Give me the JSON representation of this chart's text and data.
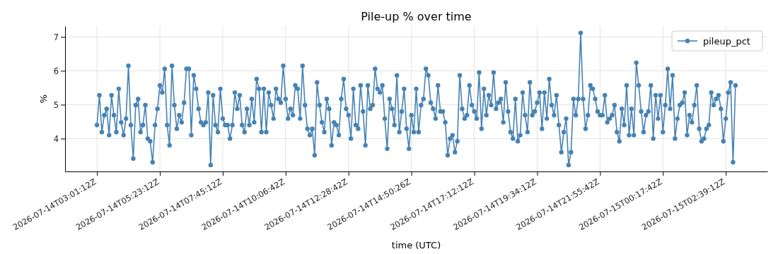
{
  "chart_data": {
    "type": "line",
    "title": "Pile-up % over time",
    "xlabel": "time (UTC)",
    "ylabel": "%",
    "categories": [
      "2026-07-14T03:01:12Z",
      null,
      null,
      null,
      null,
      null,
      null,
      null,
      null,
      null,
      null,
      null,
      null,
      null,
      null,
      null,
      null,
      null,
      null,
      null,
      null,
      null,
      null,
      null,
      null,
      null,
      "2026-07-14T05:23:12Z",
      null,
      null,
      null,
      null,
      null,
      null,
      null,
      null,
      null,
      null,
      null,
      null,
      null,
      null,
      null,
      null,
      null,
      null,
      null,
      null,
      null,
      null,
      null,
      null,
      null,
      "2026-07-14T07:45:12Z",
      null,
      null,
      null,
      null,
      null,
      null,
      null,
      null,
      null,
      null,
      null,
      null,
      null,
      null,
      null,
      null,
      null,
      null,
      null,
      null,
      null,
      null,
      null,
      null,
      null,
      "2026-07-14T10:06:42Z",
      null,
      null,
      null,
      null,
      null,
      null,
      null,
      null,
      null,
      null,
      null,
      null,
      null,
      null,
      null,
      null,
      null,
      null,
      null,
      null,
      null,
      null,
      null,
      null,
      null,
      "2026-07-14T12:28:42Z",
      null,
      null,
      null,
      null,
      null,
      null,
      null,
      null,
      null,
      null,
      null,
      null,
      null,
      null,
      null,
      null,
      null,
      null,
      null,
      null,
      null,
      null,
      null,
      null,
      null,
      "2026-07-14T14:50:26Z",
      null,
      null,
      null,
      null,
      null,
      null,
      null,
      null,
      null,
      null,
      null,
      null,
      null,
      null,
      null,
      null,
      null,
      null,
      null,
      null,
      null,
      null,
      null,
      null,
      null,
      "2026-07-14T17:12:12Z",
      null,
      null,
      null,
      null,
      null,
      null,
      null,
      null,
      null,
      null,
      null,
      null,
      null,
      null,
      null,
      null,
      null,
      null,
      null,
      null,
      null,
      null,
      null,
      null,
      null,
      "2026-07-14T19:34:12Z",
      null,
      null,
      null,
      null,
      null,
      null,
      null,
      null,
      null,
      null,
      null,
      null,
      null,
      null,
      null,
      null,
      null,
      null,
      null,
      null,
      null,
      null,
      null,
      null,
      null,
      "2026-07-14T21:55:42Z",
      null,
      null,
      null,
      null,
      null,
      null,
      null,
      null,
      null,
      null,
      null,
      null,
      null,
      null,
      null,
      null,
      null,
      null,
      null,
      null,
      null,
      null,
      null,
      null,
      null,
      "2026-07-15T00:17:42Z",
      null,
      null,
      null,
      null,
      null,
      null,
      null,
      null,
      null,
      null,
      null,
      null,
      null,
      null,
      null,
      null,
      null,
      null,
      null,
      null,
      null,
      null,
      null,
      null,
      null,
      "2026-07-15T02:39:12Z",
      null,
      null,
      null,
      null
    ],
    "series": [
      {
        "name": "pileup_pct",
        "color": "#4682b4",
        "values": [
          4.4,
          5.28,
          4.19,
          4.69,
          4.88,
          4.1,
          5.28,
          4.69,
          4.19,
          5.47,
          4.48,
          4.1,
          4.59,
          6.15,
          4.4,
          3.41,
          4.99,
          5.17,
          4.19,
          4.4,
          4.99,
          4.0,
          3.92,
          3.3,
          4.4,
          4.88,
          5.57,
          5.36,
          6.06,
          4.4,
          3.8,
          6.15,
          4.99,
          4.29,
          4.69,
          4.48,
          5.06,
          6.06,
          6.06,
          4.1,
          5.87,
          5.47,
          4.88,
          4.48,
          4.4,
          4.48,
          5.36,
          3.22,
          5.28,
          4.4,
          4.19,
          5.47,
          4.59,
          4.4,
          4.4,
          4.0,
          4.4,
          5.36,
          4.88,
          5.28,
          4.4,
          4.19,
          4.88,
          4.4,
          5.17,
          4.48,
          5.76,
          5.47,
          4.19,
          5.47,
          4.19,
          5.36,
          4.99,
          4.59,
          5.47,
          5.17,
          5.06,
          6.15,
          5.17,
          4.59,
          4.88,
          4.69,
          5.57,
          5.47,
          4.59,
          6.15,
          4.99,
          4.29,
          4.1,
          4.29,
          3.51,
          5.66,
          4.99,
          4.48,
          4.19,
          5.17,
          4.88,
          3.8,
          4.48,
          4.4,
          4.1,
          5.17,
          5.76,
          4.88,
          4.69,
          4.0,
          5.47,
          4.4,
          4.29,
          5.57,
          4.8,
          3.8,
          5.57,
          4.88,
          4.99,
          6.06,
          5.47,
          5.36,
          5.57,
          4.59,
          3.7,
          5.17,
          4.88,
          4.4,
          5.87,
          4.19,
          4.8,
          5.47,
          4.29,
          3.7,
          4.69,
          4.19,
          5.47,
          4.19,
          4.99,
          5.17,
          6.06,
          5.87,
          5.06,
          4.88,
          4.59,
          5.57,
          4.8,
          4.8,
          4.48,
          3.51,
          4.0,
          4.1,
          3.6,
          3.92,
          5.87,
          4.88,
          4.59,
          4.69,
          5.57,
          4.99,
          4.8,
          4.59,
          5.95,
          4.29,
          5.47,
          4.69,
          5.28,
          4.99,
          5.95,
          4.88,
          5.06,
          5.17,
          4.48,
          5.66,
          4.8,
          4.19,
          4.0,
          5.17,
          3.92,
          4.1,
          5.36,
          4.69,
          4.19,
          5.66,
          4.69,
          4.8,
          5.06,
          5.36,
          4.29,
          5.36,
          4.59,
          5.76,
          4.99,
          4.69,
          5.28,
          4.4,
          3.6,
          4.19,
          4.59,
          3.22,
          3.6,
          5.17,
          4.69,
          5.17,
          7.12,
          5.17,
          4.29,
          4.69,
          5.57,
          5.47,
          5.17,
          4.8,
          4.69,
          4.69,
          5.28,
          4.48,
          4.59,
          4.69,
          4.99,
          4.19,
          3.92,
          4.88,
          4.4,
          5.57,
          4.1,
          4.88,
          4.1,
          6.24,
          5.57,
          4.8,
          4.19,
          4.69,
          4.8,
          5.57,
          4.0,
          5.28,
          4.59,
          5.28,
          4.19,
          4.99,
          6.06,
          4.88,
          5.87,
          4.0,
          4.59,
          4.99,
          5.06,
          5.36,
          4.1,
          4.69,
          4.48,
          4.99,
          5.57,
          4.29,
          3.92,
          4.0,
          4.29,
          4.4,
          5.36,
          4.99,
          5.17,
          5.28,
          4.88,
          3.92,
          4.59,
          5.36,
          5.66,
          3.3,
          5.57
        ]
      }
    ],
    "ylim": [
      3.03,
      7.32
    ],
    "yticks": [
      4,
      5,
      6,
      7
    ],
    "grid": true,
    "legend": "top right",
    "marker": "circle",
    "line_style": "solid"
  }
}
